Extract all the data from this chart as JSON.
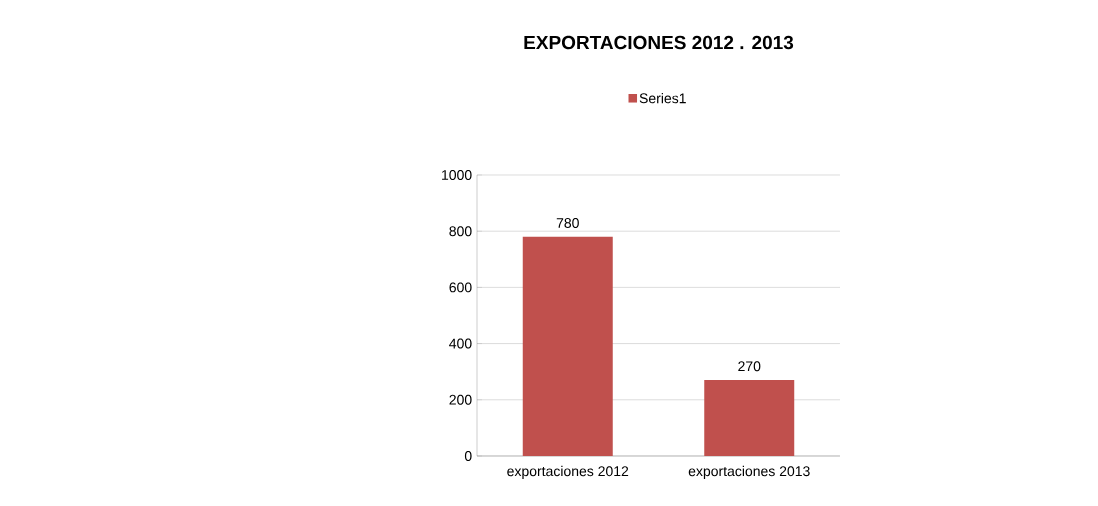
{
  "chart_data": {
    "type": "bar",
    "title": "EXPORTACIONES 2012 . 2013",
    "categories": [
      "exportaciones 2012",
      "exportaciones 2013"
    ],
    "series": [
      {
        "name": "Series1",
        "color": "#c0504d",
        "values": [
          780,
          270
        ]
      }
    ],
    "ylim": [
      0,
      1000
    ],
    "yticks": [
      0,
      200,
      400,
      600,
      800,
      1000
    ],
    "grid": "y",
    "legend": "top",
    "data_labels": true
  }
}
